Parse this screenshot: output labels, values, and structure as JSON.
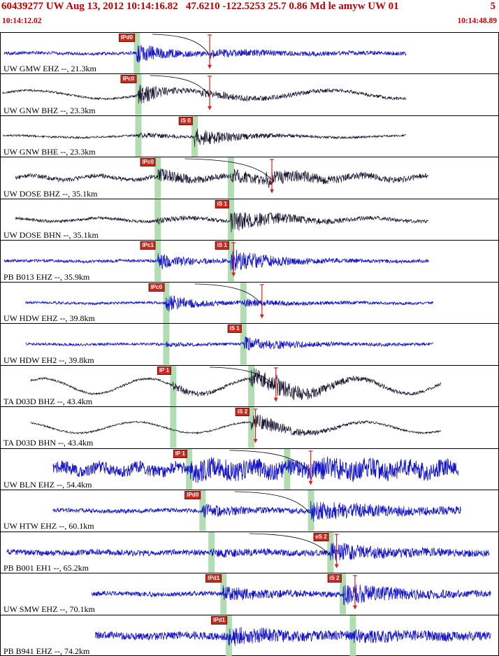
{
  "header": {
    "event_line": "60439277 UW Aug 13, 2012 10:14:16.82   47.6210 -122.5253 25.7 0.86 Md le amyw UW 01",
    "event_line_right": "5",
    "window_start": "10:14:12.02",
    "window_end": "10:14:48.89"
  },
  "colors": {
    "header_text": "#c00000",
    "trace_blue": "#1414cc",
    "trace_dark": "#17122e",
    "pick_band": "#a9d9a9",
    "flag_bg": "#cf2a1e",
    "marker_red": "#d42020",
    "divider": "#000000"
  },
  "traces": [
    {
      "label": "UW GMW EHZ --, 21.3km",
      "color": "blue",
      "start": 0.007,
      "end": 0.815,
      "bands": [
        0.273
      ],
      "picks": [
        {
          "label": "IPd0",
          "x": 0.273
        }
      ],
      "red_marker": 0.42,
      "curve": {
        "from": 0.305,
        "to": 0.42
      },
      "wave": {
        "seed": 101,
        "base": 2.4,
        "stroke": 0.8,
        "low_amp": 0.8,
        "low_period": 160,
        "low_phase": 0,
        "bursts": [
          {
            "x": 0.273,
            "amp": 13,
            "decay": 45
          },
          {
            "x": 0.42,
            "amp": 3.5,
            "decay": 130
          }
        ]
      }
    },
    {
      "label": "UW GNW BHZ --, 23.3km",
      "color": "dark",
      "start": 0.004,
      "end": 0.815,
      "bands": [
        0.276
      ],
      "picks": [
        {
          "label": "IPc0",
          "x": 0.276
        }
      ],
      "red_marker": 0.42,
      "curve": {
        "from": 0.3,
        "to": 0.42
      },
      "wave": {
        "seed": 202,
        "base": 1.6,
        "stroke": 0.7,
        "low_amp": 6,
        "low_period": 215,
        "low_phase": 0.4,
        "bursts": [
          {
            "x": 0.276,
            "amp": 16,
            "decay": 35
          },
          {
            "x": 0.4,
            "amp": 4,
            "decay": 160
          }
        ]
      }
    },
    {
      "label": "UW GNW BHE --, 23.3km",
      "color": "dark",
      "start": 0.004,
      "end": 0.815,
      "bands": [
        0.276,
        0.389
      ],
      "picks": [
        {
          "label": "iS 0",
          "x": 0.389
        }
      ],
      "red_marker": null,
      "curve": null,
      "wave": {
        "seed": 303,
        "base": 1.5,
        "stroke": 0.7,
        "low_amp": 1.5,
        "low_period": 190,
        "low_phase": 1.2,
        "bursts": [
          {
            "x": 0.276,
            "amp": 3,
            "decay": 60
          },
          {
            "x": 0.389,
            "amp": 12,
            "decay": 55
          }
        ]
      }
    },
    {
      "label": "UW DOSE BHZ --, 35.1km",
      "color": "dark",
      "start": 0.03,
      "end": 0.86,
      "bands": [
        0.315,
        0.462
      ],
      "picks": [
        {
          "label": "IPc0",
          "x": 0.315
        }
      ],
      "red_marker": 0.545,
      "curve": {
        "from": 0.37,
        "to": 0.545
      },
      "wave": {
        "seed": 404,
        "base": 3.2,
        "stroke": 0.7,
        "low_amp": 3,
        "low_period": 95,
        "low_phase": 0,
        "bursts": [
          {
            "x": 0.315,
            "amp": 8,
            "decay": 50
          },
          {
            "x": 0.462,
            "amp": 7,
            "decay": 60
          },
          {
            "x": 0.53,
            "amp": 6,
            "decay": 110
          }
        ]
      }
    },
    {
      "label": "UW DOSE BHN --, 35.1km",
      "color": "dark",
      "start": 0.03,
      "end": 0.86,
      "bands": [
        0.315,
        0.462
      ],
      "picks": [
        {
          "label": "iS 1",
          "x": 0.462
        }
      ],
      "red_marker": null,
      "curve": null,
      "wave": {
        "seed": 505,
        "base": 2.2,
        "stroke": 0.7,
        "low_amp": 2.5,
        "low_period": 130,
        "low_phase": 2.0,
        "bursts": [
          {
            "x": 0.315,
            "amp": 3,
            "decay": 50
          },
          {
            "x": 0.462,
            "amp": 15,
            "decay": 70
          }
        ]
      }
    },
    {
      "label": "PB B013 EHZ --, 35.9km",
      "color": "blue",
      "start": 0.007,
      "end": 0.86,
      "bands": [
        0.315,
        0.462
      ],
      "picks": [
        {
          "label": "IPc1",
          "x": 0.315
        },
        {
          "label": "iS 1",
          "x": 0.462
        }
      ],
      "red_marker": 0.468,
      "curve": null,
      "wave": {
        "seed": 606,
        "base": 2.2,
        "stroke": 0.8,
        "low_amp": 0.6,
        "low_period": 150,
        "low_phase": 0,
        "bursts": [
          {
            "x": 0.315,
            "amp": 11,
            "decay": 40
          },
          {
            "x": 0.462,
            "amp": 15,
            "decay": 60
          }
        ]
      }
    },
    {
      "label": "UW HDW EHZ --, 39.8km",
      "color": "blue",
      "start": 0.05,
      "end": 0.87,
      "bands": [
        0.332,
        0.487
      ],
      "picks": [
        {
          "label": "IPc0",
          "x": 0.332
        }
      ],
      "red_marker": 0.525,
      "curve": {
        "from": 0.39,
        "to": 0.525
      },
      "wave": {
        "seed": 707,
        "base": 1.8,
        "stroke": 0.8,
        "low_amp": 0.6,
        "low_period": 150,
        "low_phase": 0.9,
        "bursts": [
          {
            "x": 0.332,
            "amp": 13,
            "decay": 40
          },
          {
            "x": 0.487,
            "amp": 4,
            "decay": 70
          }
        ]
      }
    },
    {
      "label": "UW HDW EH2 --, 39.8km",
      "color": "blue",
      "start": 0.05,
      "end": 0.87,
      "bands": [
        0.332,
        0.487
      ],
      "picks": [
        {
          "label": "iS 1",
          "x": 0.487
        }
      ],
      "red_marker": null,
      "curve": null,
      "wave": {
        "seed": 808,
        "base": 1.8,
        "stroke": 0.8,
        "low_amp": 0.5,
        "low_period": 150,
        "low_phase": 1.6,
        "bursts": [
          {
            "x": 0.332,
            "amp": 2,
            "decay": 50
          },
          {
            "x": 0.487,
            "amp": 9,
            "decay": 70
          }
        ]
      }
    },
    {
      "label": "TA D03D BHZ --, 43.4km",
      "color": "dark",
      "start": 0.06,
      "end": 0.885,
      "bands": [
        0.346,
        0.503
      ],
      "picks": [
        {
          "label": "IP 1",
          "x": 0.346
        }
      ],
      "red_marker": 0.553,
      "curve": {
        "from": 0.42,
        "to": 0.553
      },
      "wave": {
        "seed": 909,
        "base": 1.6,
        "stroke": 0.7,
        "low_amp": 11,
        "low_period": 150,
        "low_phase": 0.8,
        "bursts": [
          {
            "x": 0.346,
            "amp": 5,
            "decay": 45
          },
          {
            "x": 0.5,
            "amp": 17,
            "decay": 55
          },
          {
            "x": 0.553,
            "amp": 6,
            "decay": 90
          }
        ]
      }
    },
    {
      "label": "TA D03D BHN --, 43.4km",
      "color": "dark",
      "start": 0.06,
      "end": 0.885,
      "bands": [
        0.346,
        0.503
      ],
      "picks": [
        {
          "label": "iS 2",
          "x": 0.503
        }
      ],
      "red_marker": 0.512,
      "curve": null,
      "wave": {
        "seed": 1010,
        "base": 1.2,
        "stroke": 0.7,
        "low_amp": 8,
        "low_period": 165,
        "low_phase": 2.1,
        "bursts": [
          {
            "x": 0.503,
            "amp": 13,
            "decay": 60
          }
        ]
      }
    },
    {
      "label": "UW BLN EHZ --, 54.4km",
      "color": "blue",
      "start": 0.105,
      "end": 0.92,
      "bands": [
        0.378,
        0.575
      ],
      "picks": [
        {
          "label": "IP 1",
          "x": 0.378
        }
      ],
      "red_marker": 0.623,
      "curve": {
        "from": 0.46,
        "to": 0.62
      },
      "wave": {
        "seed": 1111,
        "base": 9,
        "stroke": 0.9,
        "low_amp": 4,
        "low_period": 55,
        "low_phase": 0,
        "bursts": [
          {
            "x": 0.378,
            "amp": 8,
            "decay": 160
          },
          {
            "x": 0.623,
            "amp": 5,
            "decay": 260
          }
        ]
      }
    },
    {
      "label": "UW HTW EHZ --, 60.1km",
      "color": "blue",
      "start": 0.105,
      "end": 0.925,
      "bands": [
        0.405,
        0.623
      ],
      "picks": [
        {
          "label": "IPd0",
          "x": 0.405
        }
      ],
      "red_marker": null,
      "curve": {
        "from": 0.47,
        "to": 0.62
      },
      "wave": {
        "seed": 1212,
        "base": 3,
        "stroke": 0.8,
        "low_amp": 0.8,
        "low_period": 140,
        "low_phase": 0.5,
        "bursts": [
          {
            "x": 0.405,
            "amp": 8,
            "decay": 60
          },
          {
            "x": 0.623,
            "amp": 12,
            "decay": 140
          }
        ]
      }
    },
    {
      "label": "PB B001 EH1 --, 65.2km",
      "color": "blue",
      "start": 0.012,
      "end": 0.982,
      "bands": [
        0.423,
        0.662
      ],
      "picks": [
        {
          "label": "eS 2",
          "x": 0.662
        }
      ],
      "red_marker": 0.675,
      "curve": {
        "from": 0.5,
        "to": 0.66
      },
      "wave": {
        "seed": 1313,
        "base": 4.2,
        "stroke": 0.8,
        "low_amp": 1,
        "low_period": 120,
        "low_phase": 1.1,
        "bursts": [
          {
            "x": 0.423,
            "amp": 2,
            "decay": 100
          },
          {
            "x": 0.662,
            "amp": 10,
            "decay": 90
          }
        ]
      }
    },
    {
      "label": "UW SMW EHZ --, 70.1km",
      "color": "blue",
      "start": 0.183,
      "end": 0.985,
      "bands": [
        0.447,
        0.687
      ],
      "picks": [
        {
          "label": "IPd1",
          "x": 0.447
        },
        {
          "label": "iS 2",
          "x": 0.687
        }
      ],
      "red_marker": 0.712,
      "curve": null,
      "wave": {
        "seed": 1414,
        "base": 3.4,
        "stroke": 0.8,
        "low_amp": 0.8,
        "low_period": 130,
        "low_phase": 0,
        "bursts": [
          {
            "x": 0.447,
            "amp": 9,
            "decay": 60
          },
          {
            "x": 0.687,
            "amp": 13,
            "decay": 90
          }
        ]
      }
    },
    {
      "label": "PB B941 EHZ --, 74.2km",
      "color": "blue",
      "start": 0.19,
      "end": 0.985,
      "bands": [
        0.458,
        0.707
      ],
      "picks": [
        {
          "label": "IPd1",
          "x": 0.458
        }
      ],
      "red_marker": null,
      "curve": null,
      "wave": {
        "seed": 1515,
        "base": 5.5,
        "stroke": 0.8,
        "low_amp": 1.2,
        "low_period": 110,
        "low_phase": 0.7,
        "bursts": [
          {
            "x": 0.458,
            "amp": 10,
            "decay": 80
          },
          {
            "x": 0.707,
            "amp": 4,
            "decay": 160
          }
        ]
      }
    }
  ]
}
